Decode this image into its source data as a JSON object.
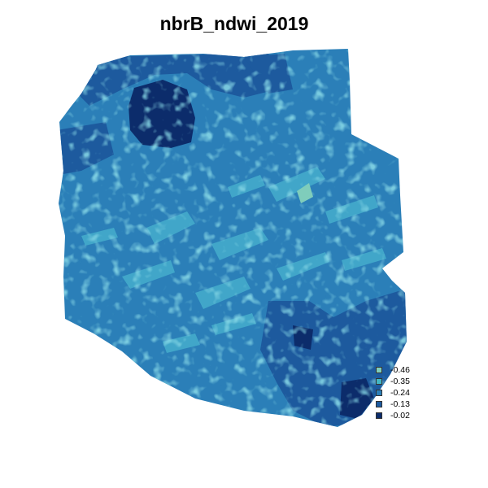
{
  "title": "nbrB_ndwi_2019",
  "map": {
    "type": "raster",
    "colors": {
      "lightest": "#7fcdbb",
      "light": "#41a6c9",
      "mid": "#2b7fb8",
      "dark": "#1d5a9e",
      "darkest": "#0c2c6b"
    }
  },
  "legend": {
    "items": [
      {
        "label": "-0.46",
        "color": "#7fcdbb"
      },
      {
        "label": "-0.35",
        "color": "#41b6c4"
      },
      {
        "label": "-0.24",
        "color": "#2c7fb8"
      },
      {
        "label": "-0.13",
        "color": "#1d5aa0"
      },
      {
        "label": "-0.02",
        "color": "#0c2c6b"
      }
    ]
  }
}
